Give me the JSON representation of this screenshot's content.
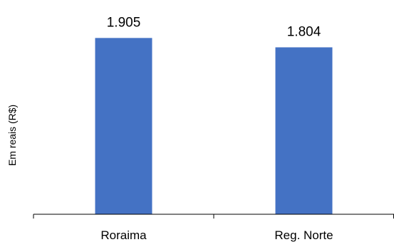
{
  "chart_data": {
    "type": "bar",
    "categories": [
      "Roraima",
      "Reg. Norte"
    ],
    "values": [
      1905,
      1804
    ],
    "value_labels": [
      "1.905",
      "1.804"
    ],
    "ylabel": "Em reais (R$)",
    "ylim": [
      0,
      2000
    ],
    "grid": false,
    "legend": "none",
    "bar_color": "#4472C4",
    "axis_color": "#000000"
  }
}
